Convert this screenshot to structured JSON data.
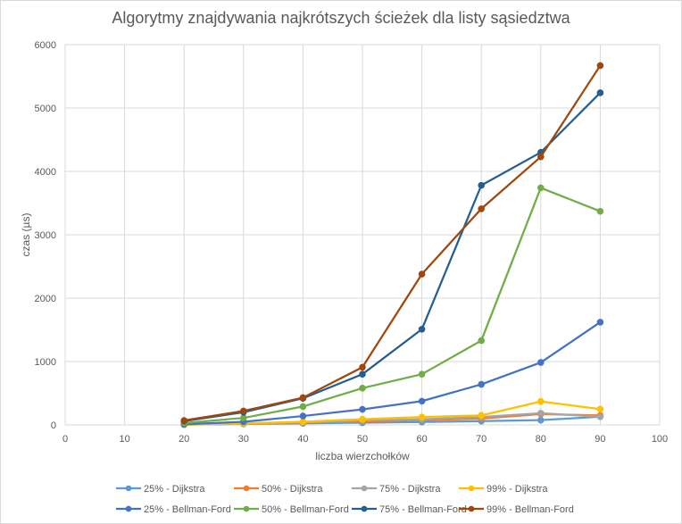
{
  "chart_data": {
    "type": "line",
    "title": "Algorytmy znajdywania najkrótszych ścieżek dla listy sąsiedztwa",
    "xlabel": "liczba wierzchołków",
    "ylabel": "czas (µs)",
    "xlim": [
      0,
      100
    ],
    "ylim": [
      0,
      6000
    ],
    "x_ticks": [
      0,
      10,
      20,
      30,
      40,
      50,
      60,
      70,
      80,
      90,
      100
    ],
    "y_ticks": [
      0,
      1000,
      2000,
      3000,
      4000,
      5000,
      6000
    ],
    "grid": "vertical and horizontal",
    "legend_position": "bottom",
    "x": [
      20,
      30,
      40,
      50,
      60,
      70,
      80,
      90
    ],
    "series": [
      {
        "name": "25% - Dijkstra",
        "color": "#5B9BD5",
        "values": [
          5,
          15,
          25,
          35,
          45,
          60,
          75,
          130
        ]
      },
      {
        "name": "50% - Dijkstra",
        "color": "#ED7D31",
        "values": [
          5,
          20,
          35,
          55,
          75,
          100,
          170,
          150
        ]
      },
      {
        "name": "75% - Dijkstra",
        "color": "#A5A5A5",
        "values": [
          5,
          20,
          40,
          70,
          90,
          125,
          185,
          130
        ]
      },
      {
        "name": "99% - Dijkstra",
        "color": "#FFC000",
        "values": [
          5,
          25,
          50,
          90,
          125,
          150,
          370,
          250
        ]
      },
      {
        "name": "25% - Bellman-Ford",
        "color": "#4472C4",
        "values": [
          10,
          50,
          140,
          245,
          375,
          640,
          985,
          1620
        ]
      },
      {
        "name": "50% - Bellman-Ford",
        "color": "#70AD47",
        "values": [
          30,
          110,
          290,
          580,
          800,
          1330,
          3740,
          3370
        ]
      },
      {
        "name": "75% - Bellman-Ford",
        "color": "#255E91",
        "values": [
          60,
          200,
          420,
          800,
          1510,
          3780,
          4300,
          5240
        ]
      },
      {
        "name": "99% - Bellman-Ford",
        "color": "#9E480E",
        "values": [
          70,
          220,
          430,
          910,
          2380,
          3410,
          4230,
          5670
        ]
      }
    ]
  }
}
